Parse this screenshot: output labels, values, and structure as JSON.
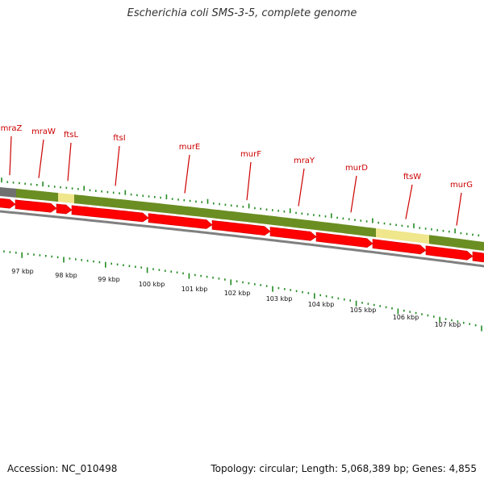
{
  "title": "Escherichia coli SMS-3-5, complete genome",
  "footer": {
    "accession": "Accession: NC_010498",
    "summary": "Topology: circular; Length: 5,068,389 bp; Genes: 4,855"
  },
  "colors": {
    "gene_label": "#cc0000",
    "gene_arrow": "#ff0000",
    "olive_band": "#6b8e23",
    "pale_band": "#f0e68c",
    "gray_band": "#707070",
    "backbone": "#808080",
    "tick": "#228b22"
  },
  "genes": [
    {
      "name": "mraZ"
    },
    {
      "name": "mraW"
    },
    {
      "name": "ftsL"
    },
    {
      "name": "ftsI"
    },
    {
      "name": "murE"
    },
    {
      "name": "murF"
    },
    {
      "name": "mraY"
    },
    {
      "name": "murD"
    },
    {
      "name": "ftsW"
    },
    {
      "name": "murG"
    }
  ],
  "scale_labels": [
    "97 kbp",
    "98 kbp",
    "99 kbp",
    "100 kbp",
    "101 kbp",
    "102 kbp",
    "103 kbp",
    "104 kbp",
    "105 kbp",
    "106 kbp",
    "107 kbp"
  ]
}
